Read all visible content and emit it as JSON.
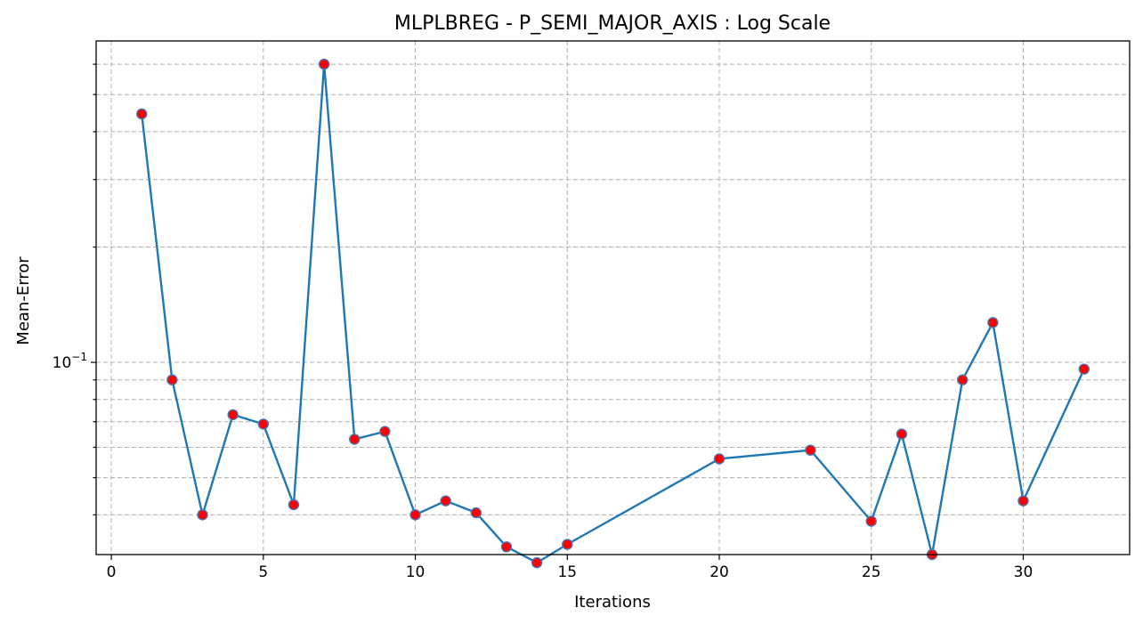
{
  "chart_data": {
    "type": "line",
    "title": "MLPLBREG - P_SEMI_MAJOR_AXIS : Log Scale",
    "xlabel": "Iterations",
    "ylabel": "Mean-Error",
    "yscale": "log",
    "xlim": [
      -0.5,
      33.5
    ],
    "ylim": [
      0.0315,
      0.69
    ],
    "x_ticks": [
      0,
      5,
      10,
      15,
      20,
      25,
      30
    ],
    "y_major_ticks": [
      0.1
    ],
    "y_major_tick_labels": [
      {
        "base": "10",
        "exp": "−1"
      }
    ],
    "y_minor_ticks": [
      0.04,
      0.05,
      0.06,
      0.07,
      0.08,
      0.09,
      0.2,
      0.3,
      0.4,
      0.5,
      0.6
    ],
    "grid": true,
    "line_color": "#1f77b4",
    "marker_face": "#ff0000",
    "marker_edge": "#4c72b0",
    "series": [
      {
        "x": [
          1,
          2,
          3,
          4,
          5,
          6,
          7,
          8,
          9,
          10,
          11,
          12,
          13,
          14,
          15,
          20,
          23,
          25,
          26,
          27,
          28,
          29,
          30,
          32
        ],
        "values": [
          0.445,
          0.09,
          0.04,
          0.073,
          0.069,
          0.0425,
          0.6,
          0.063,
          0.066,
          0.04,
          0.0435,
          0.0405,
          0.033,
          0.03,
          0.0335,
          0.056,
          0.059,
          0.0385,
          0.065,
          0.0315,
          0.09,
          0.127,
          0.0435,
          0.096
        ]
      }
    ]
  }
}
